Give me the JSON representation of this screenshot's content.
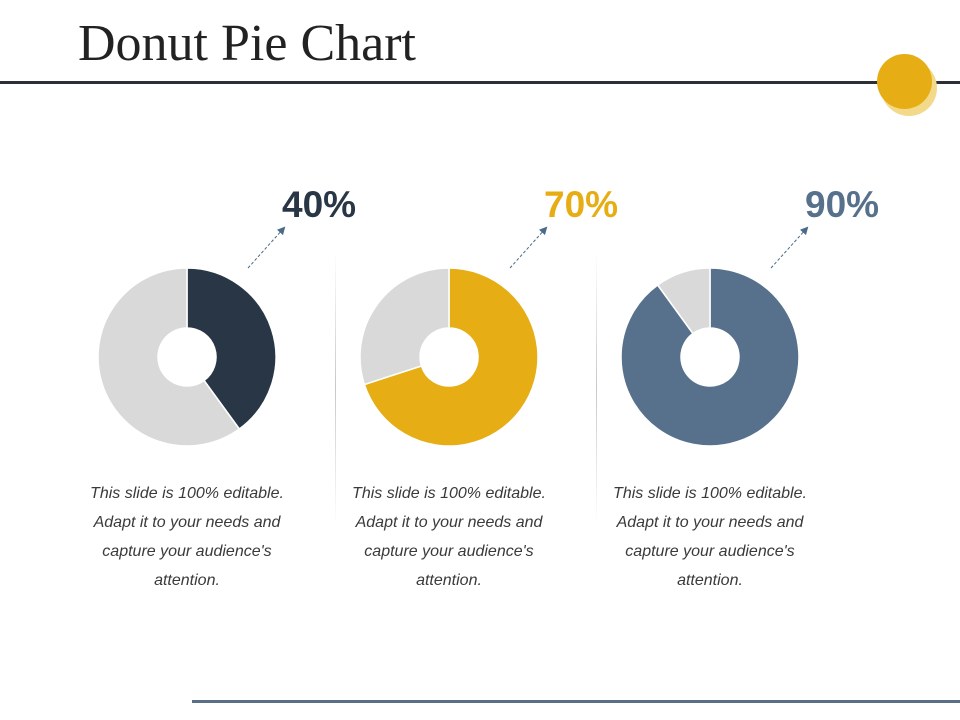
{
  "slide": {
    "title": "Donut Pie Chart"
  },
  "colors": {
    "title_rule": "#2c2f33",
    "accent": "#e6ae14",
    "remainder": "#d9d9d9",
    "footer_rule": "#5a6f86"
  },
  "chart_data": [
    {
      "type": "pie",
      "style": "donut",
      "label": "40%",
      "values": [
        40,
        60
      ],
      "colors": [
        "#283645",
        "#d9d9d9"
      ],
      "caption": "This slide is 100% editable. Adapt it to your needs and capture your audience's attention."
    },
    {
      "type": "pie",
      "style": "donut",
      "label": "70%",
      "values": [
        70,
        30
      ],
      "colors": [
        "#e6ae14",
        "#d9d9d9"
      ],
      "caption": "This slide is 100% editable. Adapt it to your needs and capture your audience's attention."
    },
    {
      "type": "pie",
      "style": "donut",
      "label": "90%",
      "values": [
        90,
        10
      ],
      "colors": [
        "#57718d",
        "#d9d9d9"
      ],
      "caption": "This slide is 100% editable. Adapt it to your needs and capture your audience's attention."
    }
  ]
}
